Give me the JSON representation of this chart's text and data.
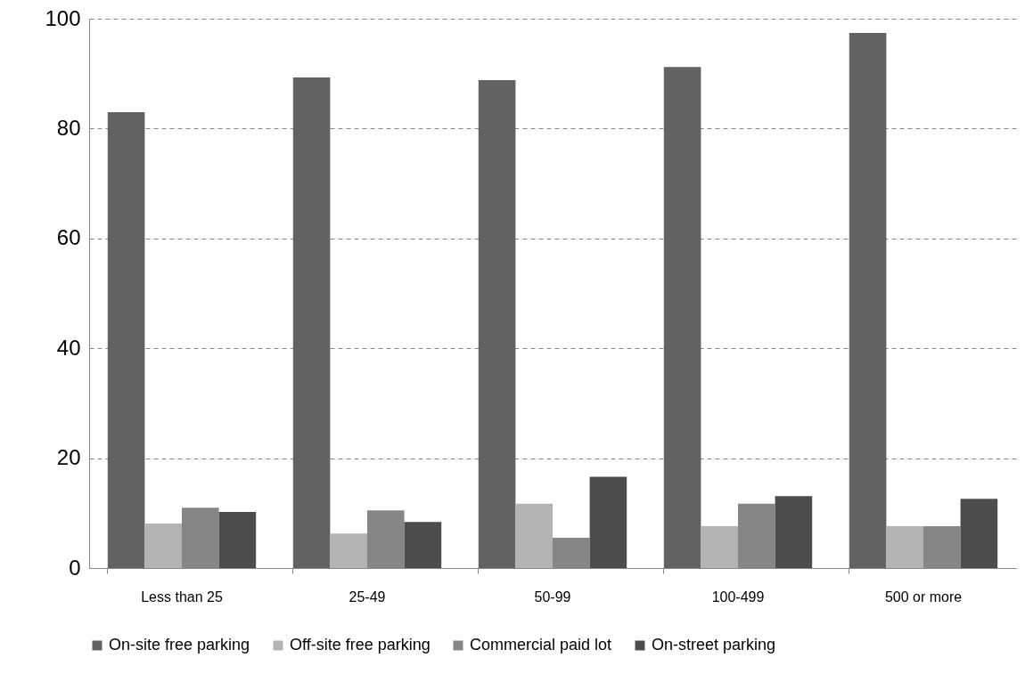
{
  "chart_data": {
    "type": "bar",
    "categories": [
      "Less than 25",
      "25-49",
      "50-99",
      "100-499",
      "500 or more"
    ],
    "series": [
      {
        "name": "On-site free parking",
        "color": "#626262",
        "values": [
          83.0,
          89.3,
          88.8,
          91.2,
          97.4
        ]
      },
      {
        "name": "Off-site free parking",
        "color": "#b3b3b3",
        "values": [
          8.1,
          6.3,
          11.7,
          7.6,
          7.6
        ]
      },
      {
        "name": "Commercial paid lot",
        "color": "#868686",
        "values": [
          11.0,
          10.5,
          5.5,
          11.7,
          7.6
        ]
      },
      {
        "name": "On-street parking",
        "color": "#4d4d4d",
        "values": [
          10.2,
          8.4,
          16.6,
          13.1,
          12.6
        ]
      }
    ],
    "ylim": [
      0,
      100
    ],
    "yticks": [
      0,
      20,
      40,
      60,
      80,
      100
    ],
    "grid": "y",
    "legend": "bottom"
  }
}
